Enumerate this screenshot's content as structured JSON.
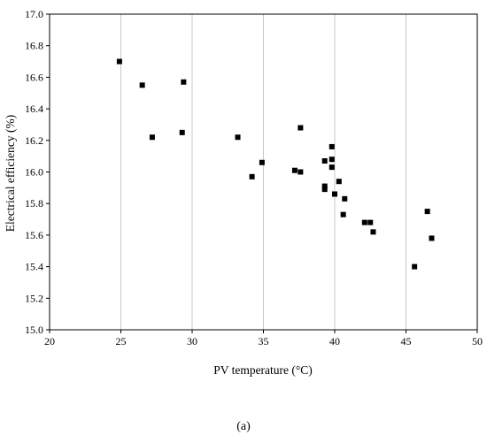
{
  "chart_data": {
    "type": "scatter",
    "xlabel": "PV temperature (°C)",
    "ylabel": "Electrical efficiency (%)",
    "xlim": [
      20,
      50
    ],
    "ylim": [
      15.0,
      17.0
    ],
    "x_ticks": [
      "20",
      "25",
      "30",
      "35",
      "40",
      "45",
      "50"
    ],
    "y_ticks": [
      "15.0",
      "15.2",
      "15.4",
      "15.6",
      "15.8",
      "16.0",
      "16.2",
      "16.4",
      "16.6",
      "16.8",
      "17.0"
    ],
    "grid": "vertical",
    "marker": "square",
    "marker_color": "#000000",
    "grid_color": "#c8c8c8",
    "points": [
      {
        "x": 24.9,
        "y": 16.7
      },
      {
        "x": 26.5,
        "y": 16.55
      },
      {
        "x": 27.2,
        "y": 16.22
      },
      {
        "x": 29.3,
        "y": 16.25
      },
      {
        "x": 29.4,
        "y": 16.57
      },
      {
        "x": 33.2,
        "y": 16.22
      },
      {
        "x": 34.2,
        "y": 15.97
      },
      {
        "x": 34.9,
        "y": 16.06
      },
      {
        "x": 37.2,
        "y": 16.01
      },
      {
        "x": 37.6,
        "y": 16.0
      },
      {
        "x": 37.6,
        "y": 16.28
      },
      {
        "x": 39.3,
        "y": 16.07
      },
      {
        "x": 39.3,
        "y": 15.91
      },
      {
        "x": 39.3,
        "y": 15.89
      },
      {
        "x": 39.8,
        "y": 16.16
      },
      {
        "x": 39.8,
        "y": 16.08
      },
      {
        "x": 39.8,
        "y": 16.03
      },
      {
        "x": 40.0,
        "y": 15.86
      },
      {
        "x": 40.3,
        "y": 15.94
      },
      {
        "x": 40.6,
        "y": 15.73
      },
      {
        "x": 40.7,
        "y": 15.83
      },
      {
        "x": 42.1,
        "y": 15.68
      },
      {
        "x": 42.5,
        "y": 15.68
      },
      {
        "x": 42.7,
        "y": 15.62
      },
      {
        "x": 45.6,
        "y": 15.4
      },
      {
        "x": 46.5,
        "y": 15.75
      },
      {
        "x": 46.8,
        "y": 15.58
      }
    ]
  },
  "caption": "(a)"
}
